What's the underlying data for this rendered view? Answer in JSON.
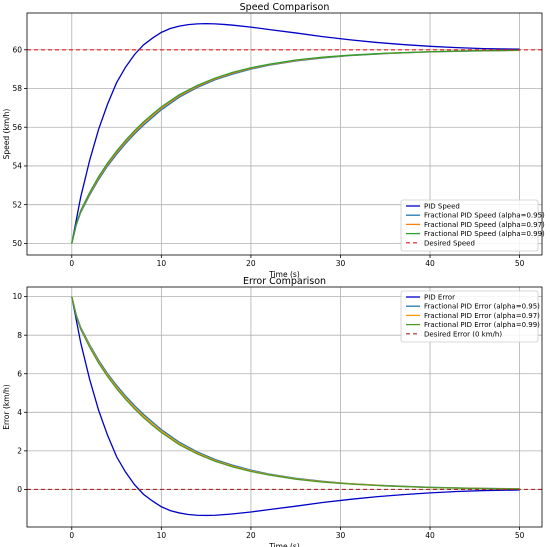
{
  "chart_data": [
    {
      "type": "line",
      "title": "Speed Comparison",
      "xlabel": "Time (s)",
      "ylabel": "Speed (km/h)",
      "xlim": [
        -5,
        52.5
      ],
      "ylim": [
        49.4,
        61.9
      ],
      "xticks": [
        0,
        10,
        20,
        30,
        40,
        50
      ],
      "yticks": [
        50,
        52,
        54,
        56,
        58,
        60
      ],
      "grid": true,
      "legend_position": "lower-right",
      "series": [
        {
          "name": "PID Speed",
          "color": "#0000c8",
          "width": 1.3,
          "x": [
            0,
            1,
            2,
            3,
            4,
            5,
            6,
            7,
            8,
            9,
            10,
            11,
            12,
            13,
            14,
            15,
            16,
            17,
            18,
            20,
            22,
            25,
            28,
            31,
            34,
            37,
            40,
            43,
            46,
            50
          ],
          "y": [
            50,
            52.4,
            54.3,
            55.9,
            57.2,
            58.3,
            59.1,
            59.75,
            60.25,
            60.6,
            60.9,
            61.1,
            61.22,
            61.3,
            61.34,
            61.35,
            61.34,
            61.31,
            61.27,
            61.17,
            61.05,
            60.87,
            60.68,
            60.52,
            60.38,
            60.27,
            60.18,
            60.11,
            60.06,
            60.03
          ]
        },
        {
          "name": "Fractional PID Speed (alpha=0.95)",
          "color": "#1f77b4",
          "width": 1.3,
          "x": [
            0,
            0.5,
            1,
            2,
            3,
            4,
            5,
            6,
            7,
            8,
            9,
            10,
            12,
            14,
            16,
            18,
            20,
            22,
            25,
            28,
            31,
            35,
            40,
            45,
            50
          ],
          "y": [
            50,
            50.95,
            51.6,
            52.5,
            53.3,
            54.0,
            54.6,
            55.15,
            55.65,
            56.1,
            56.5,
            56.9,
            57.55,
            58.05,
            58.45,
            58.75,
            59.0,
            59.2,
            59.42,
            59.58,
            59.7,
            59.8,
            59.89,
            59.94,
            59.97
          ]
        },
        {
          "name": "Fractional PID Speed (alpha=0.97)",
          "color": "#ff7f0e",
          "width": 1.3,
          "x": [
            0,
            0.5,
            1,
            2,
            3,
            4,
            5,
            6,
            7,
            8,
            9,
            10,
            12,
            14,
            16,
            18,
            20,
            22,
            25,
            28,
            31,
            35,
            40,
            45,
            50
          ],
          "y": [
            50,
            50.98,
            51.65,
            52.57,
            53.38,
            54.08,
            54.69,
            55.24,
            55.74,
            56.19,
            56.59,
            56.98,
            57.62,
            58.11,
            58.5,
            58.8,
            59.04,
            59.23,
            59.45,
            59.6,
            59.71,
            59.81,
            59.9,
            59.95,
            59.97
          ]
        },
        {
          "name": "Fractional PID Speed (alpha=0.99)",
          "color": "#2ca02c",
          "width": 1.3,
          "x": [
            0,
            0.5,
            1,
            2,
            3,
            4,
            5,
            6,
            7,
            8,
            9,
            10,
            12,
            14,
            16,
            18,
            20,
            22,
            25,
            28,
            31,
            35,
            40,
            45,
            50
          ],
          "y": [
            50,
            51.0,
            51.7,
            52.63,
            53.45,
            54.15,
            54.77,
            55.32,
            55.82,
            56.27,
            56.67,
            57.05,
            57.68,
            58.16,
            58.54,
            58.84,
            59.07,
            59.25,
            59.47,
            59.62,
            59.72,
            59.82,
            59.9,
            59.95,
            59.98
          ]
        },
        {
          "name": "Desired Speed",
          "color": "#e41a1c",
          "dash": "4,3",
          "width": 1.1,
          "x": [
            -5,
            52.5
          ],
          "y": [
            60,
            60
          ]
        }
      ]
    },
    {
      "type": "line",
      "title": "Error Comparison",
      "xlabel": "Time (s)",
      "ylabel": "Error (km/h)",
      "xlim": [
        -5,
        52.5
      ],
      "ylim": [
        -1.95,
        10.5
      ],
      "xticks": [
        0,
        10,
        20,
        30,
        40,
        50
      ],
      "yticks": [
        0,
        2,
        4,
        6,
        8,
        10
      ],
      "grid": true,
      "legend_position": "upper-right",
      "series": [
        {
          "name": "PID Error",
          "color": "#0000c8",
          "width": 1.3,
          "x": [
            0,
            1,
            2,
            3,
            4,
            5,
            6,
            7,
            8,
            9,
            10,
            11,
            12,
            13,
            14,
            15,
            16,
            17,
            18,
            20,
            22,
            25,
            28,
            31,
            34,
            37,
            40,
            43,
            46,
            50
          ],
          "y": [
            10,
            7.6,
            5.7,
            4.1,
            2.8,
            1.7,
            0.9,
            0.25,
            -0.25,
            -0.6,
            -0.9,
            -1.1,
            -1.22,
            -1.3,
            -1.34,
            -1.35,
            -1.34,
            -1.31,
            -1.27,
            -1.17,
            -1.05,
            -0.87,
            -0.68,
            -0.52,
            -0.38,
            -0.27,
            -0.18,
            -0.11,
            -0.06,
            -0.03
          ]
        },
        {
          "name": "Fractional PID Error (alpha=0.95)",
          "color": "#1f77b4",
          "width": 1.3,
          "x": [
            0,
            0.5,
            1,
            2,
            3,
            4,
            5,
            6,
            7,
            8,
            9,
            10,
            12,
            14,
            16,
            18,
            20,
            22,
            25,
            28,
            31,
            35,
            40,
            45,
            50
          ],
          "y": [
            10,
            9.05,
            8.4,
            7.5,
            6.7,
            6.0,
            5.4,
            4.85,
            4.35,
            3.9,
            3.5,
            3.1,
            2.45,
            1.95,
            1.55,
            1.25,
            1.0,
            0.8,
            0.58,
            0.42,
            0.3,
            0.2,
            0.11,
            0.06,
            0.03
          ]
        },
        {
          "name": "Fractional PID Error (alpha=0.97)",
          "color": "#ff9900",
          "width": 1.3,
          "x": [
            0,
            0.5,
            1,
            2,
            3,
            4,
            5,
            6,
            7,
            8,
            9,
            10,
            12,
            14,
            16,
            18,
            20,
            22,
            25,
            28,
            31,
            35,
            40,
            45,
            50
          ],
          "y": [
            10,
            9.02,
            8.35,
            7.43,
            6.62,
            5.92,
            5.31,
            4.76,
            4.26,
            3.81,
            3.41,
            3.02,
            2.38,
            1.89,
            1.5,
            1.2,
            0.96,
            0.77,
            0.55,
            0.4,
            0.29,
            0.19,
            0.1,
            0.05,
            0.03
          ]
        },
        {
          "name": "Fractional PID Error (alpha=0.99)",
          "color": "#4c9a2a",
          "width": 1.3,
          "x": [
            0,
            0.5,
            1,
            2,
            3,
            4,
            5,
            6,
            7,
            8,
            9,
            10,
            12,
            14,
            16,
            18,
            20,
            22,
            25,
            28,
            31,
            35,
            40,
            45,
            50
          ],
          "y": [
            10,
            9.0,
            8.3,
            7.37,
            6.55,
            5.85,
            5.23,
            4.68,
            4.18,
            3.73,
            3.33,
            2.95,
            2.32,
            1.84,
            1.46,
            1.16,
            0.93,
            0.75,
            0.53,
            0.38,
            0.28,
            0.18,
            0.1,
            0.05,
            0.02
          ]
        },
        {
          "name": "Desired Error (0 km/h)",
          "color": "#a52a2a",
          "dash": "4,3",
          "width": 1.1,
          "x": [
            -5,
            52.5
          ],
          "y": [
            0,
            0
          ]
        }
      ]
    }
  ]
}
